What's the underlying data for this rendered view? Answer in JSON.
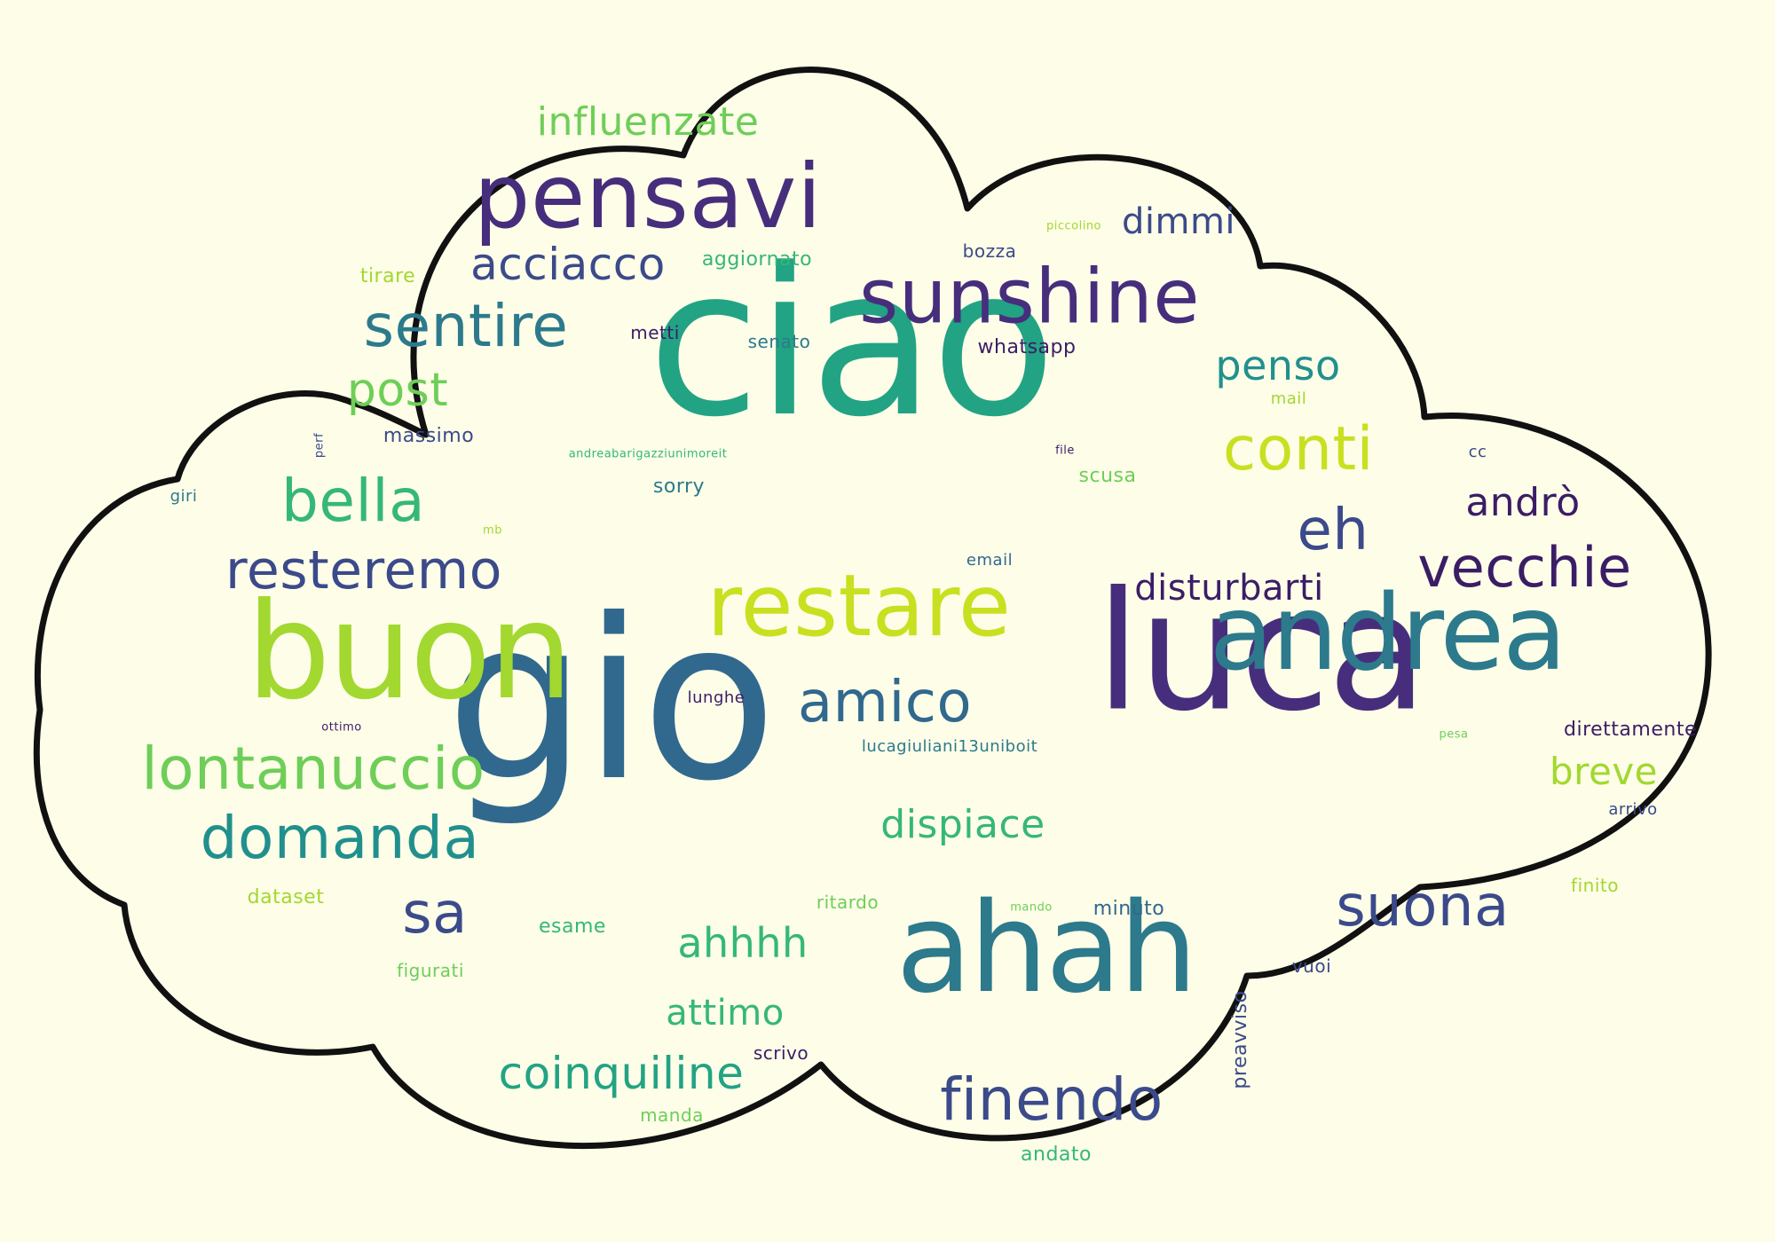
{
  "cloud": {
    "fill": "#fdfde8",
    "outline": "#111111"
  },
  "palette": {
    "dark_purple": "#3b1d66",
    "purple": "#472e7c",
    "indigo": "#3b4a8a",
    "blue": "#31688e",
    "steel": "#2c7a8c",
    "teal": "#21908d",
    "sea": "#22a384",
    "green": "#35b779",
    "light_green": "#6ece58",
    "lime": "#a2d82f",
    "yellow": "#c8e020"
  },
  "words": [
    {
      "id": "ciao",
      "text": "ciao",
      "color": "#22a384"
    },
    {
      "id": "gio",
      "text": "gio",
      "color": "#31688e"
    },
    {
      "id": "luca",
      "text": "luca",
      "color": "#472e7c"
    },
    {
      "id": "buon",
      "text": "buon",
      "color": "#a2d82f"
    },
    {
      "id": "andrea",
      "text": "andrea",
      "color": "#2c7a8c"
    },
    {
      "id": "ahah",
      "text": "ahah",
      "color": "#2c7a8c"
    },
    {
      "id": "restare",
      "text": "restare",
      "color": "#c8e020"
    },
    {
      "id": "pensavi",
      "text": "pensavi",
      "color": "#472e7c"
    },
    {
      "id": "sunshine",
      "text": "sunshine",
      "color": "#472e7c"
    },
    {
      "id": "sentire",
      "text": "sentire",
      "color": "#2c7a8c"
    },
    {
      "id": "acciacco",
      "text": "acciacco",
      "color": "#3b4a8a"
    },
    {
      "id": "influenzate",
      "text": "influenzate",
      "color": "#6ece58"
    },
    {
      "id": "dimmi",
      "text": "dimmi",
      "color": "#3b4a8a"
    },
    {
      "id": "post",
      "text": "post",
      "color": "#6ece58"
    },
    {
      "id": "penso",
      "text": "penso",
      "color": "#21908d"
    },
    {
      "id": "conti",
      "text": "conti",
      "color": "#c8e020"
    },
    {
      "id": "bella",
      "text": "bella",
      "color": "#35b779"
    },
    {
      "id": "eh",
      "text": "eh",
      "color": "#3b4a8a"
    },
    {
      "id": "resteremo",
      "text": "resteremo",
      "color": "#3b4a8a"
    },
    {
      "id": "vecchie",
      "text": "vecchie",
      "color": "#3b1d66"
    },
    {
      "id": "andro",
      "text": "andrò",
      "color": "#3b1d66"
    },
    {
      "id": "disturbarti",
      "text": "disturbarti",
      "color": "#3b1d66"
    },
    {
      "id": "amico",
      "text": "amico",
      "color": "#31688e"
    },
    {
      "id": "lontanuccio",
      "text": "lontanuccio",
      "color": "#6ece58"
    },
    {
      "id": "domanda",
      "text": "domanda",
      "color": "#21908d"
    },
    {
      "id": "dispiace",
      "text": "dispiace",
      "color": "#35b779"
    },
    {
      "id": "sa",
      "text": "sa",
      "color": "#3b4a8a"
    },
    {
      "id": "suona",
      "text": "suona",
      "color": "#3b4a8a"
    },
    {
      "id": "ahhhh",
      "text": "ahhhh",
      "color": "#35b779"
    },
    {
      "id": "attimo",
      "text": "attimo",
      "color": "#35b779"
    },
    {
      "id": "coinquiline",
      "text": "coinquiline",
      "color": "#22a384"
    },
    {
      "id": "finendo",
      "text": "finendo",
      "color": "#3b4a8a"
    },
    {
      "id": "breve",
      "text": "breve",
      "color": "#a2d82f"
    },
    {
      "id": "direttamente",
      "text": "direttamente",
      "color": "#3b1d66"
    },
    {
      "id": "tirare",
      "text": "tirare",
      "color": "#a2d82f"
    },
    {
      "id": "aggiornato",
      "text": "aggiornato",
      "color": "#35b779"
    },
    {
      "id": "bozza",
      "text": "bozza",
      "color": "#3b4a8a"
    },
    {
      "id": "piccolino",
      "text": "piccolino",
      "color": "#a2d82f"
    },
    {
      "id": "metti",
      "text": "metti",
      "color": "#3b1d66"
    },
    {
      "id": "senato",
      "text": "senato",
      "color": "#2c7a8c"
    },
    {
      "id": "whatsapp",
      "text": "whatsapp",
      "color": "#3b1d66"
    },
    {
      "id": "mail",
      "text": "mail",
      "color": "#a2d82f"
    },
    {
      "id": "massimo",
      "text": "massimo",
      "color": "#3b4a8a"
    },
    {
      "id": "perf",
      "text": "perf",
      "color": "#3b4a8a"
    },
    {
      "id": "andreabarigazzi",
      "text": "andreabarigazziunimoreit",
      "color": "#35b779"
    },
    {
      "id": "file",
      "text": "file",
      "color": "#3b1d66"
    },
    {
      "id": "scusa",
      "text": "scusa",
      "color": "#6ece58"
    },
    {
      "id": "sorry",
      "text": "sorry",
      "color": "#2c7a8c"
    },
    {
      "id": "cc",
      "text": "cc",
      "color": "#3b4a8a"
    },
    {
      "id": "giri",
      "text": "giri",
      "color": "#2c7a8c"
    },
    {
      "id": "mb",
      "text": "mb",
      "color": "#a2d82f"
    },
    {
      "id": "email",
      "text": "email",
      "color": "#31688e"
    },
    {
      "id": "lunghe",
      "text": "lunghe",
      "color": "#3b1d66"
    },
    {
      "id": "ottimo",
      "text": "ottimo",
      "color": "#3b1d66"
    },
    {
      "id": "lucagiuliani",
      "text": "lucagiuliani13uniboit",
      "color": "#2c7a8c"
    },
    {
      "id": "pesa",
      "text": "pesa",
      "color": "#6ece58"
    },
    {
      "id": "arrivo",
      "text": "arrivo",
      "color": "#3b4a8a"
    },
    {
      "id": "dataset",
      "text": "dataset",
      "color": "#a2d82f"
    },
    {
      "id": "ritardo",
      "text": "ritardo",
      "color": "#6ece58"
    },
    {
      "id": "mando",
      "text": "mando",
      "color": "#6ece58"
    },
    {
      "id": "minuto",
      "text": "minuto",
      "color": "#31688e"
    },
    {
      "id": "finito",
      "text": "finito",
      "color": "#a2d82f"
    },
    {
      "id": "esame",
      "text": "esame",
      "color": "#35b779"
    },
    {
      "id": "figurati",
      "text": "figurati",
      "color": "#6ece58"
    },
    {
      "id": "vuoi",
      "text": "vuoi",
      "color": "#3b4a8a"
    },
    {
      "id": "preavviso",
      "text": "preavviso",
      "color": "#3b4a8a"
    },
    {
      "id": "scrivo",
      "text": "scrivo",
      "color": "#3b1d66"
    },
    {
      "id": "manda",
      "text": "manda",
      "color": "#6ece58"
    },
    {
      "id": "andato",
      "text": "andato",
      "color": "#35b779"
    }
  ]
}
